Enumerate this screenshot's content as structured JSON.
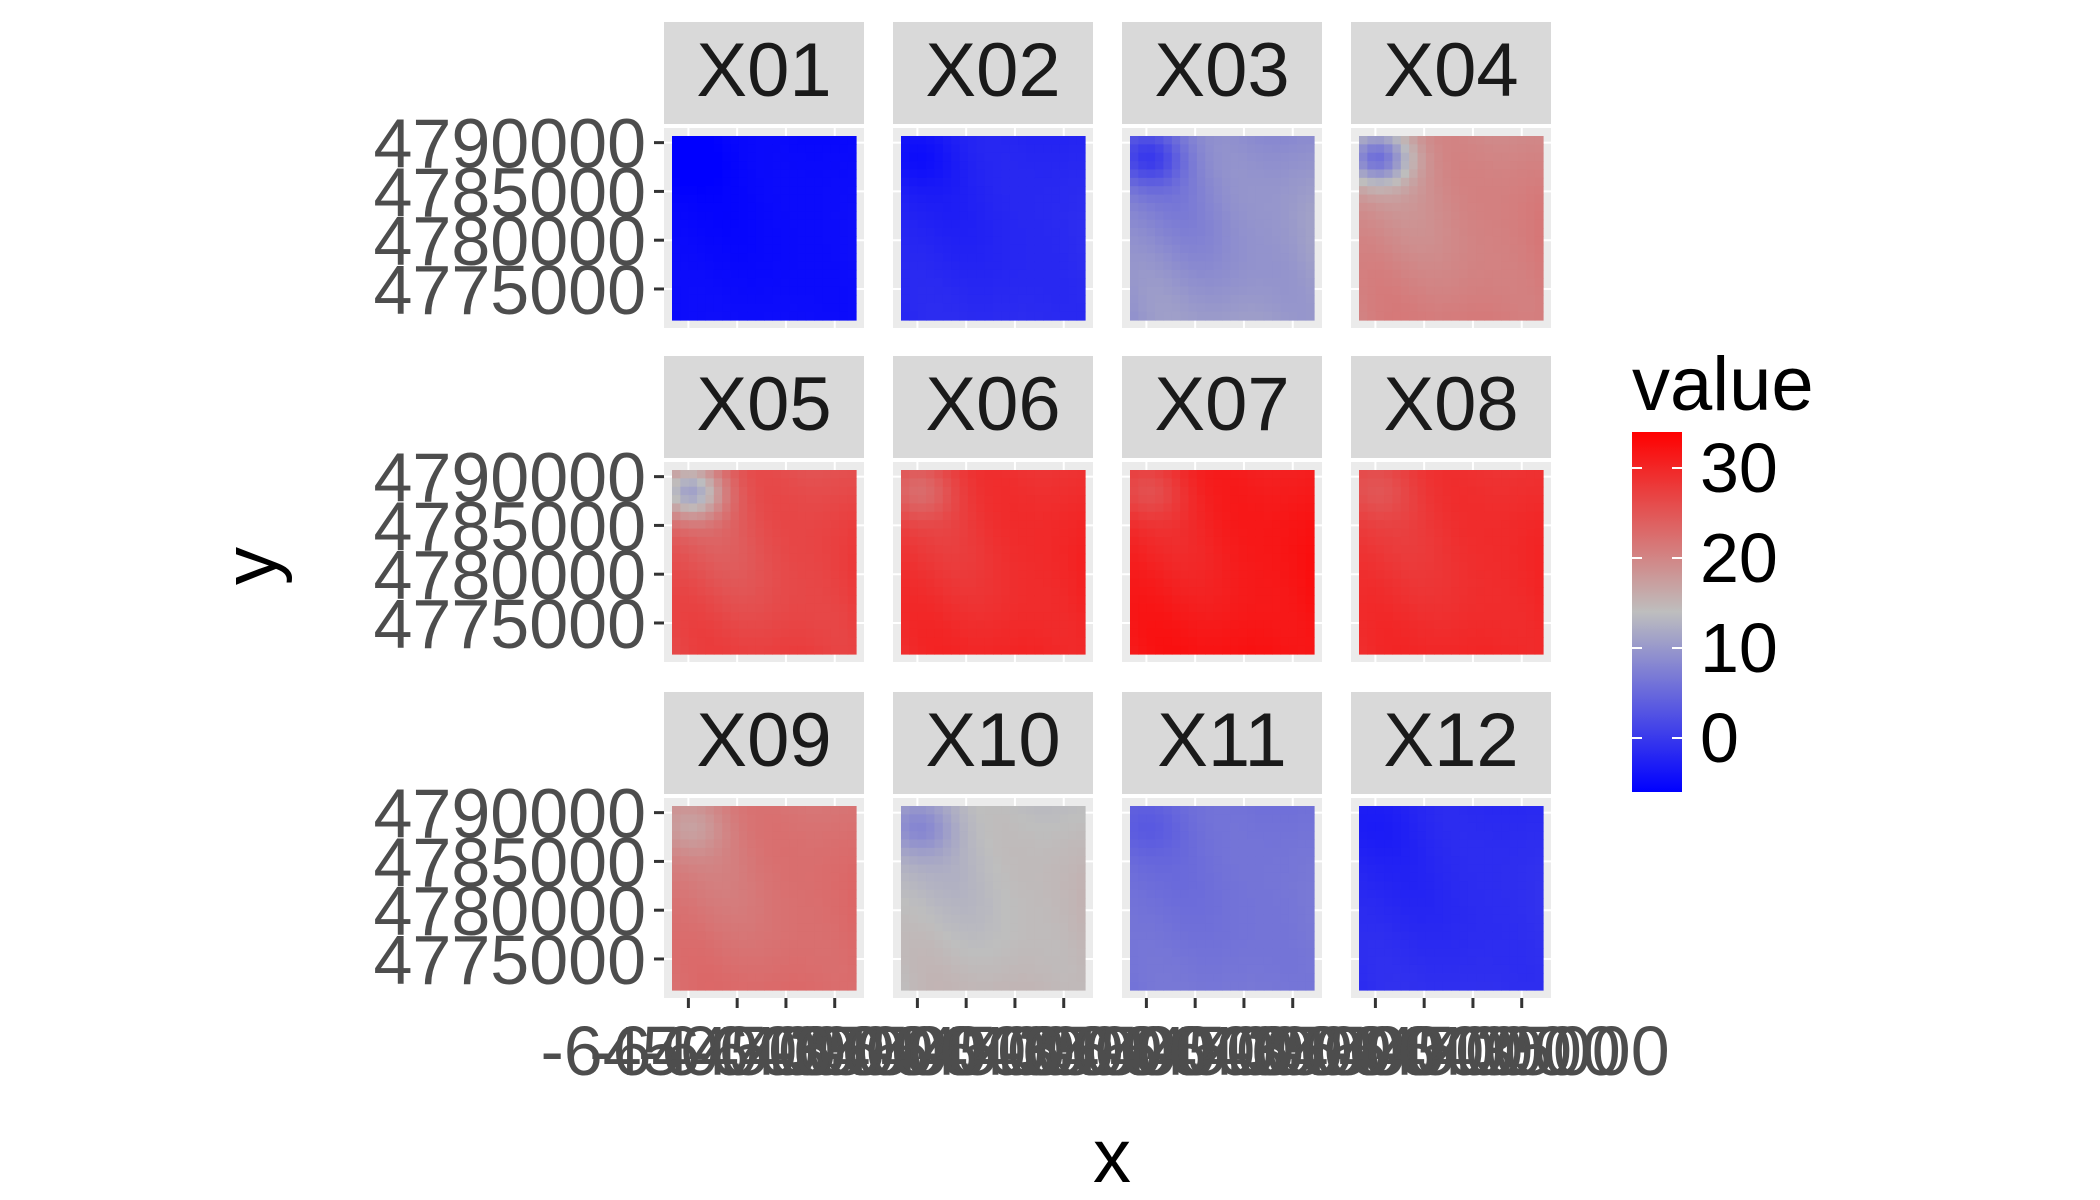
{
  "chart_data": {
    "type": "heatmap",
    "title": "",
    "xlabel": "x",
    "ylabel": "y",
    "facet_layout": {
      "rows": 3,
      "cols": 4
    },
    "x_ticks": {
      "values": [
        -6450000,
        -6445000,
        -6440000,
        -6435000
      ],
      "labels": [
        "-6450000",
        "-6445000",
        "-6440000",
        "-6435000"
      ]
    },
    "y_ticks": {
      "values": [
        4790000,
        4785000,
        4780000,
        4775000
      ],
      "labels": [
        "4790000",
        "4785000",
        "4780000",
        "4775000"
      ]
    },
    "xlim": [
      -6452500,
      -6432000
    ],
    "ylim": [
      4771000,
      4791500
    ],
    "grid_cells": 22,
    "color_scale": {
      "title": "value",
      "colors": [
        "#0000ff",
        "#bebebe",
        "#ff0000"
      ],
      "limits": [
        -6,
        34
      ],
      "midpoint": 14,
      "tick_values": [
        0,
        10,
        20,
        30
      ],
      "tick_labels": [
        "0",
        "10",
        "20",
        "30"
      ]
    },
    "panels": [
      {
        "label": "X01",
        "mean": -5,
        "gradient": 1,
        "corner_anomaly": 1
      },
      {
        "label": "X02",
        "mean": -2,
        "gradient": 1.5,
        "corner_anomaly": 1.5
      },
      {
        "label": "X03",
        "mean": 9,
        "gradient": 4,
        "corner_anomaly": 6
      },
      {
        "label": "X04",
        "mean": 20,
        "gradient": 3,
        "corner_anomaly": 12
      },
      {
        "label": "X05",
        "mean": 26,
        "gradient": 4,
        "corner_anomaly": 12
      },
      {
        "label": "X06",
        "mean": 29,
        "gradient": 3,
        "corner_anomaly": 4
      },
      {
        "label": "X07",
        "mean": 31,
        "gradient": 3,
        "corner_anomaly": 3
      },
      {
        "label": "X08",
        "mean": 29,
        "gradient": 2.5,
        "corner_anomaly": 2
      },
      {
        "label": "X09",
        "mean": 22,
        "gradient": 2.5,
        "corner_anomaly": 3
      },
      {
        "label": "X10",
        "mean": 14,
        "gradient": 2.5,
        "corner_anomaly": 4
      },
      {
        "label": "X11",
        "mean": 6,
        "gradient": 1.5,
        "corner_anomaly": 1.5
      },
      {
        "label": "X12",
        "mean": -1.5,
        "gradient": 1.5,
        "corner_anomaly": 0.5
      }
    ]
  }
}
